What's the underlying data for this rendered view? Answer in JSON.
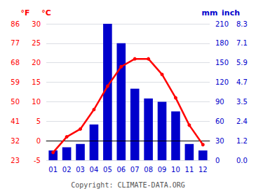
{
  "chart_data": {
    "type": "bar",
    "categories": [
      "01",
      "02",
      "03",
      "04",
      "05",
      "06",
      "07",
      "08",
      "09",
      "10",
      "11",
      "12"
    ],
    "series": [
      {
        "type": "bar",
        "axis": "y2",
        "color": "#0000cc",
        "values": [
          15,
          20,
          25,
          55,
          210,
          180,
          110,
          95,
          90,
          75,
          25,
          15
        ]
      },
      {
        "type": "line",
        "axis": "y",
        "color": "#ff0000",
        "marker": "circle",
        "values": [
          -3,
          1,
          3,
          8,
          14,
          19,
          21,
          21,
          17,
          11,
          4,
          -1
        ]
      }
    ],
    "ylabel": "°C",
    "ylim": [
      -5,
      30
    ],
    "yticks": [
      -5,
      0,
      5,
      10,
      15,
      20,
      25,
      30
    ],
    "y2label": "mm",
    "y2lim": [
      0,
      210
    ],
    "y2ticks": [
      0,
      30,
      60,
      90,
      120,
      150,
      180,
      210
    ],
    "y3label": "°F",
    "y3lim": [
      23,
      86
    ],
    "y3ticks": [
      23,
      32,
      41,
      50,
      59,
      68,
      77,
      86
    ],
    "y4label": "inch",
    "y4lim": [
      0,
      8.267716535433072
    ],
    "y4ticks": [
      {
        "value": 0,
        "label": "0.0"
      },
      {
        "value": 1.1811023622047243,
        "label": "1.2"
      },
      {
        "value": 2.3622047244094486,
        "label": "2.4"
      },
      {
        "value": 3.543307086614173,
        "label": "3.5"
      },
      {
        "value": 4.724409448818897,
        "label": "4.7"
      },
      {
        "value": 5.905511811023622,
        "label": "5.9"
      },
      {
        "value": 7.086614173228346,
        "label": "7.1"
      },
      {
        "value": 8.267716535433072,
        "label": "8.3"
      }
    ],
    "hlines": [
      0
    ],
    "grid": true,
    "annotations": [
      "Copyright: CLIMATE-DATA.ORG"
    ]
  }
}
